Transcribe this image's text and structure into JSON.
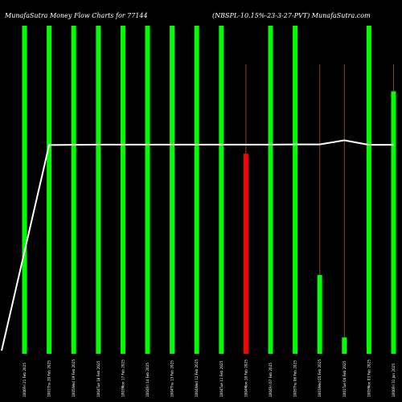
{
  "header": {
    "title_left": "MunafaSutra Money Flow  Charts for 77144",
    "title_right": "(NBSPL-10.15%-23-3-27-PVT) MunafaSutra.com"
  },
  "colors": {
    "background": "#000000",
    "up_bar": "#00ff00",
    "down_bar": "#ff0000",
    "wick": "#8b4513",
    "price_line": "#ffffff",
    "label": "#ffffff"
  },
  "chart_data": {
    "type": "bar",
    "categories": [
      "1000Fri 21 Feb 2025",
      "1001Thu 20 Feb 2025",
      "1005Wed 19 Feb 2025",
      "1004Tue 18 Feb 2025",
      "1003Mon 17 Feb 2025",
      "1004Fri 14 Feb 2025",
      "1004Thu 13 Feb 2025",
      "1004Wed 12 Feb 2025",
      "1004Tue 11 Feb 2025",
      "1004Mon 10 Feb 2025",
      "1004Fri 07 Feb 2025",
      "1005Thu 06 Feb 2025",
      "1003Wed 05 Feb 2025",
      "1001Tue 04 Feb 2025",
      "1005Mon 03 Feb 2025",
      "1000Fri 31 Jan 2025"
    ],
    "series": [
      {
        "values": [
          100,
          100,
          100,
          100,
          100,
          100,
          100,
          100,
          100,
          61,
          100,
          100,
          24,
          5,
          100,
          80
        ],
        "direction": [
          "up",
          "up",
          "up",
          "up",
          "up",
          "up",
          "up",
          "up",
          "up",
          "down",
          "up",
          "up",
          "up",
          "up",
          "up",
          "up"
        ],
        "wick_tops": [
          100,
          100,
          100,
          100,
          100,
          100,
          100,
          100,
          100,
          100,
          100,
          100,
          100,
          100,
          100,
          100
        ]
      },
      {
        "values": [
          1.5,
          100.3,
          100.4,
          100.5,
          100.5,
          100.5,
          100.5,
          100.5,
          100.5,
          100.5,
          100.5,
          100.6,
          100.6,
          102.6,
          100.4,
          100.4
        ]
      }
    ],
    "ylim": [
      0,
      100
    ],
    "grid": false
  }
}
